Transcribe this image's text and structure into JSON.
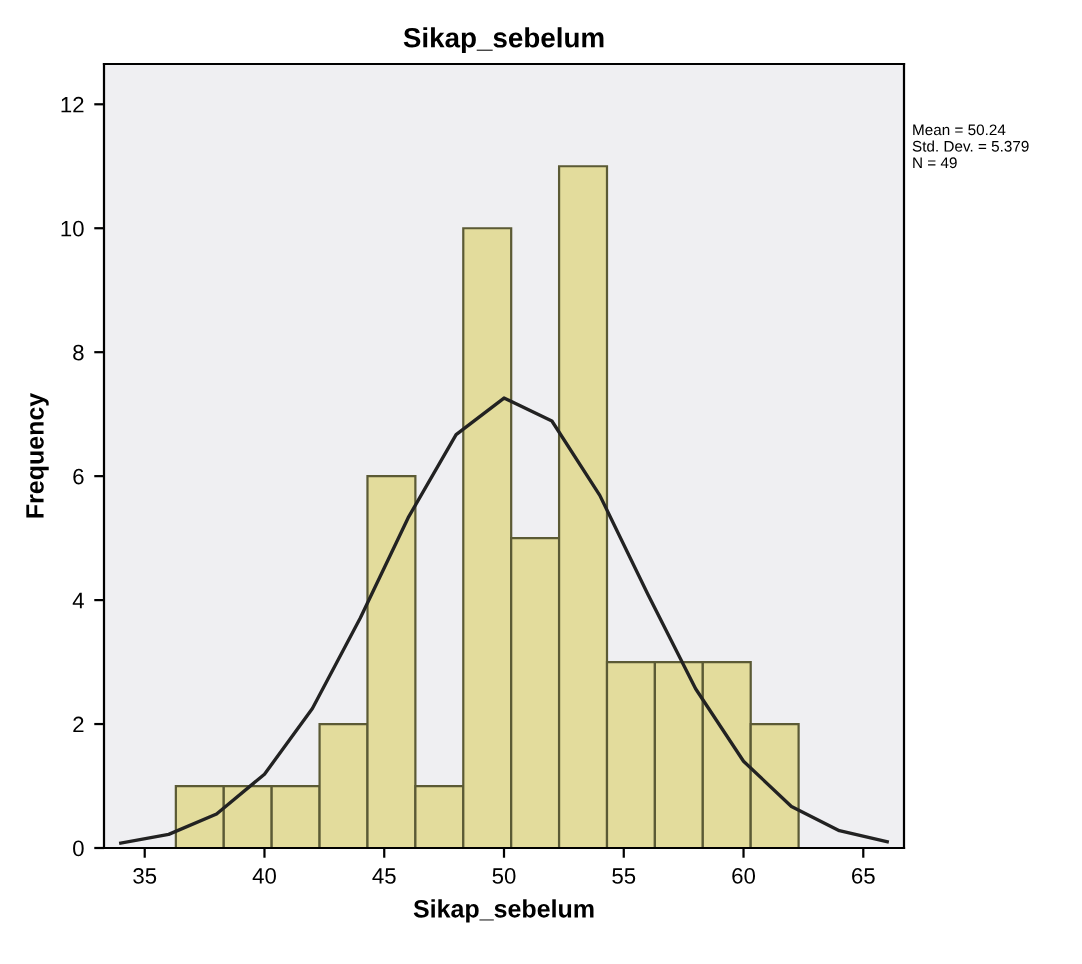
{
  "chart_data": {
    "type": "histogram",
    "title": "Sikap_sebelum",
    "xlabel": "Sikap_sebelum",
    "ylabel": "Frequency",
    "bins": [
      36.3,
      38.3,
      40.3,
      42.3,
      44.3,
      46.3,
      48.3,
      50.3,
      52.3,
      54.3,
      56.3,
      58.3,
      60.3,
      62.3
    ],
    "values": [
      1,
      1,
      1,
      2,
      6,
      1,
      10,
      5,
      11,
      3,
      3,
      3,
      2
    ],
    "color": "#e3dc9c",
    "series": [
      {
        "type": "line",
        "color": "#222222",
        "x": [
          34,
          36,
          38,
          40,
          42,
          44,
          46,
          48,
          50,
          52,
          54,
          56,
          58,
          60,
          62,
          64,
          66
        ],
        "values": [
          0.08,
          0.22,
          0.55,
          1.19,
          2.25,
          3.71,
          5.33,
          6.67,
          7.26,
          6.89,
          5.69,
          4.1,
          2.57,
          1.4,
          0.67,
          0.28,
          0.1
        ]
      }
    ],
    "xlim": [
      33.3,
      66.7
    ],
    "xticks": [
      35,
      40,
      45,
      50,
      55,
      60,
      65
    ],
    "ylim": [
      0,
      12.65
    ],
    "yticks": [
      0,
      2,
      4,
      6,
      8,
      10,
      12
    ],
    "grid": false,
    "legend": false,
    "annotations": [
      "Mean = 50.24\nStd. Dev. = 5.379\nN = 49"
    ]
  }
}
